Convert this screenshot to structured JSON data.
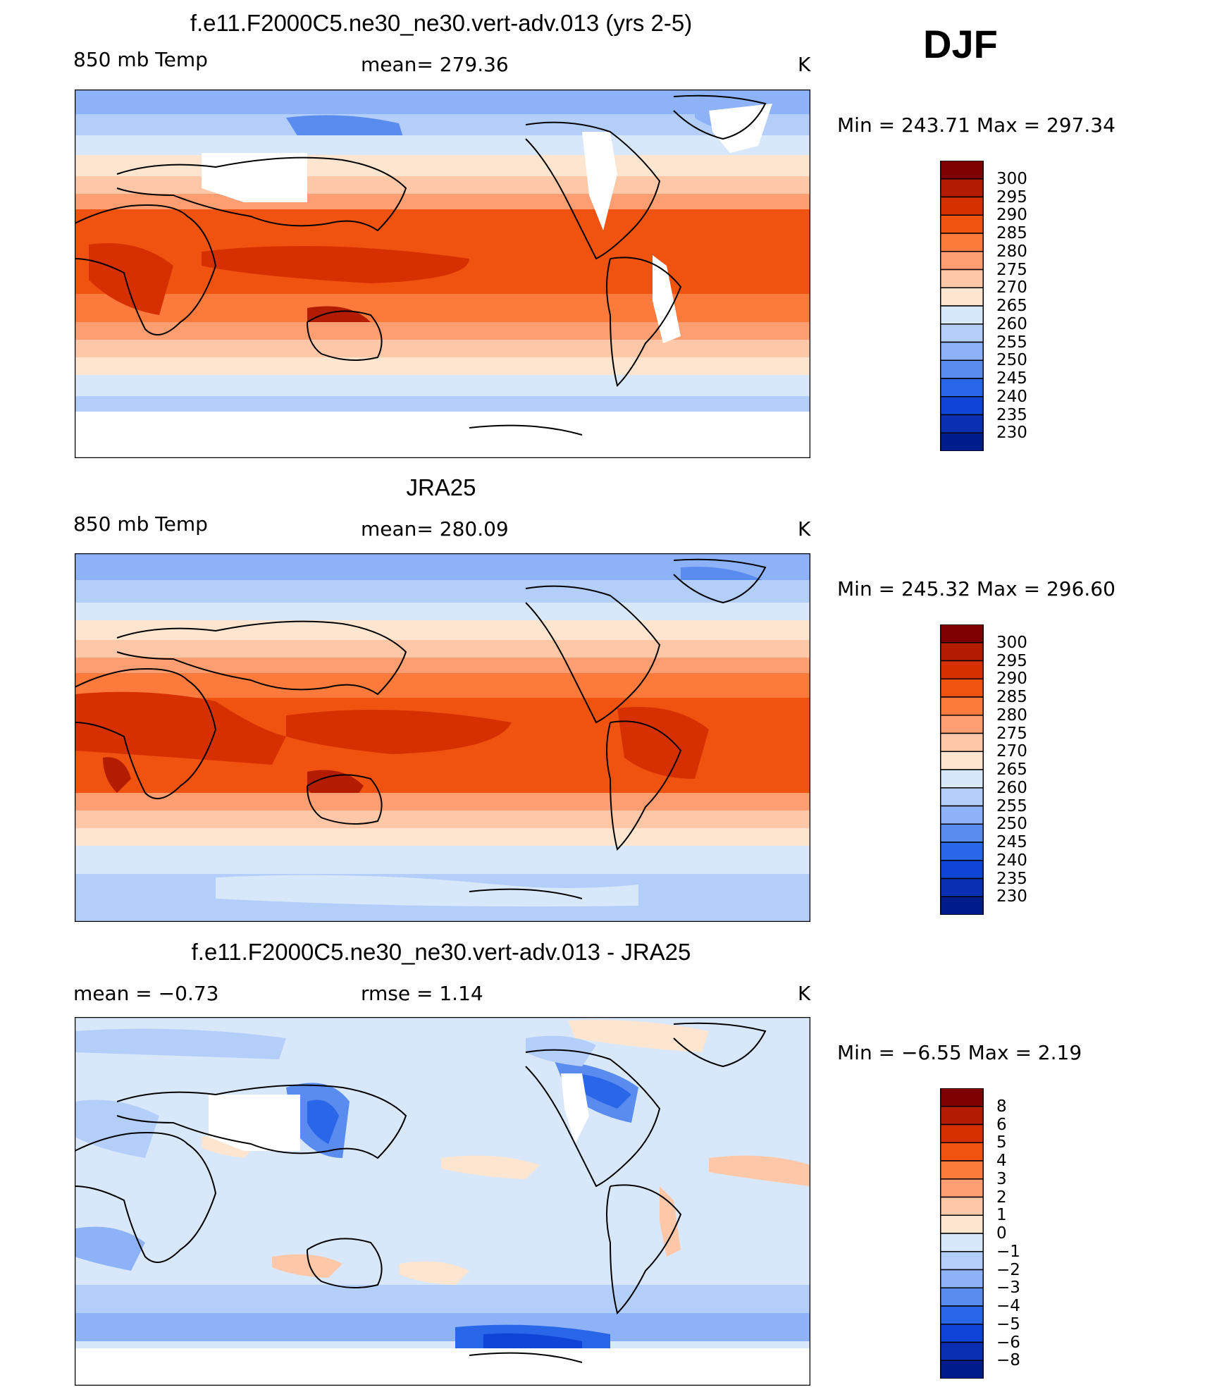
{
  "season": "DJF",
  "panels": [
    {
      "title": "f.e11.F2000C5.ne30_ne30.vert-adv.013 (yrs 2-5)",
      "left_label": "850 mb Temp",
      "center_label": "mean=  279.36",
      "units": "K",
      "min_max": "Min  =  243.71  Max  =  297.34",
      "colorbar_labels": [
        "300",
        "295",
        "290",
        "285",
        "280",
        "275",
        "270",
        "265",
        "260",
        "255",
        "250",
        "245",
        "240",
        "235",
        "230"
      ]
    },
    {
      "title": "JRA25",
      "left_label": "850 mb Temp",
      "center_label": "mean=  280.09",
      "units": "K",
      "min_max": "Min  =  245.32  Max  =  296.60",
      "colorbar_labels": [
        "300",
        "295",
        "290",
        "285",
        "280",
        "275",
        "270",
        "265",
        "260",
        "255",
        "250",
        "245",
        "240",
        "235",
        "230"
      ]
    },
    {
      "title": "f.e11.F2000C5.ne30_ne30.vert-adv.013 - JRA25",
      "left_label": "mean  =     −0.73",
      "center_label": "rmse  =     1.14",
      "units": "K",
      "min_max": "Min  =     −6.55  Max  =     2.19",
      "colorbar_labels": [
        "8",
        "6",
        "5",
        "4",
        "3",
        "2",
        "1",
        "0",
        "−1",
        "−2",
        "−3",
        "−4",
        "−5",
        "−6",
        "−8"
      ]
    }
  ],
  "colors": {
    "temperature_scale": [
      "#7f0000",
      "#b41c00",
      "#d73000",
      "#f0520f",
      "#fb7a3c",
      "#fc9e72",
      "#fdc7a8",
      "#fde5cf",
      "#d8e8fa",
      "#b4cefa",
      "#8db2f8",
      "#5a8cf0",
      "#2a66e8",
      "#0f45d6",
      "#0a2fb0",
      "#001c8c"
    ],
    "difference_scale": [
      "#7f0000",
      "#b41c00",
      "#d73000",
      "#f0520f",
      "#fb7a3c",
      "#fc9e72",
      "#fdc7a8",
      "#fde5cf",
      "#d8e8fa",
      "#b4cefa",
      "#8db2f8",
      "#5a8cf0",
      "#2a66e8",
      "#0f45d6",
      "#0a2fb0",
      "#001c8c"
    ]
  }
}
